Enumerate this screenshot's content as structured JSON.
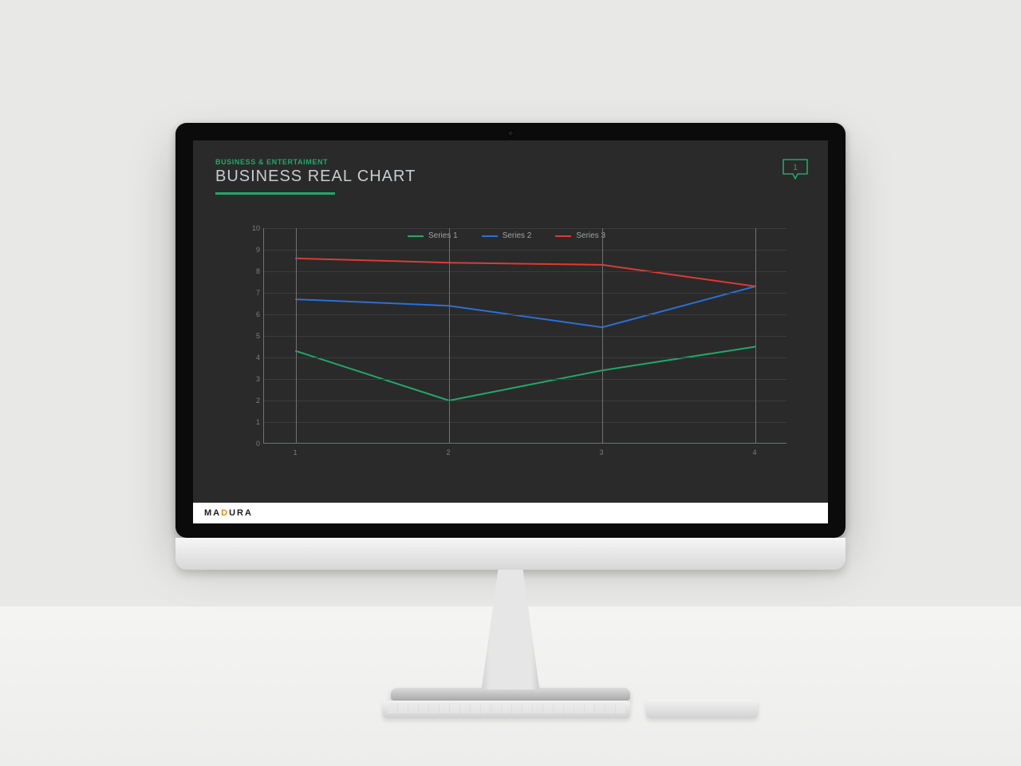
{
  "header": {
    "eyebrow": "BUSINESS & ENTERTAIMENT",
    "title": "BUSINESS REAL CHART",
    "accent_color": "#20a86a",
    "title_color": "#c9ccce",
    "eyebrow_fontsize": 9,
    "title_fontsize": 20
  },
  "comment_badge": {
    "value": "1",
    "stroke": "#20a86a",
    "text_color": "#20a86a"
  },
  "chart": {
    "type": "line",
    "background_color": "#2a2a2a",
    "axis_color": "#6f7274",
    "grid_color": "#3c3c3c",
    "tick_label_color": "#7a7d7f",
    "tick_fontsize": 9,
    "legend_fontsize": 10,
    "legend_color": "#9fa2a4",
    "line_width": 2,
    "x_categories": [
      "1",
      "2",
      "3",
      "4"
    ],
    "ylim": [
      0,
      10
    ],
    "ytick_step": 1,
    "series": [
      {
        "name": "Series 1",
        "color": "#20a86a",
        "values": [
          4.3,
          2.0,
          3.4,
          4.5
        ]
      },
      {
        "name": "Series 2",
        "color": "#2b6fd6",
        "values": [
          6.7,
          6.4,
          5.4,
          7.3
        ]
      },
      {
        "name": "Series 3",
        "color": "#dc3b33",
        "values": [
          8.6,
          8.4,
          8.3,
          7.3
        ]
      }
    ]
  },
  "footer": {
    "logo_part1": "MA",
    "logo_part2": "D",
    "logo_part3": "URA",
    "bar_bg": "#ffffff",
    "logo_accent": "#e68a1f"
  }
}
